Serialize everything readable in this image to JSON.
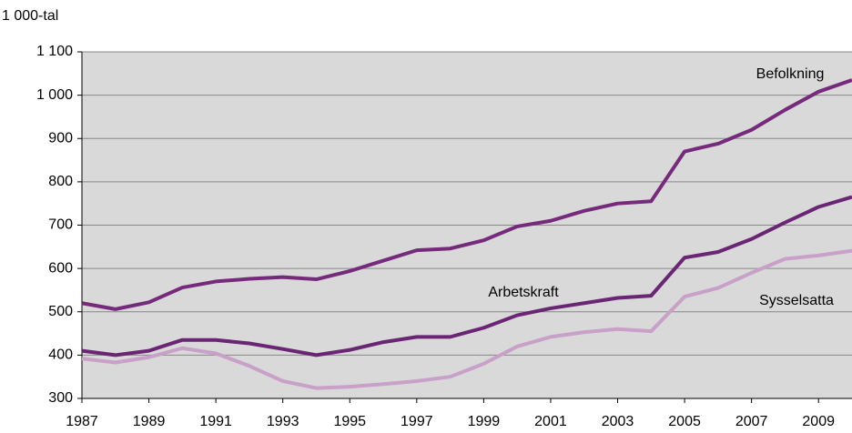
{
  "chart_data": {
    "type": "line",
    "y_label": "1 000-tal",
    "x": [
      1987,
      1988,
      1989,
      1990,
      1991,
      1992,
      1993,
      1994,
      1995,
      1996,
      1997,
      1998,
      1999,
      2000,
      2001,
      2002,
      2003,
      2004,
      2005,
      2006,
      2007,
      2008,
      2009,
      2010
    ],
    "series": [
      {
        "name": "Befolkning",
        "color": "#762a7b",
        "values": [
          520,
          506,
          522,
          556,
          570,
          576,
          580,
          575,
          594,
          618,
          642,
          646,
          665,
          697,
          710,
          733,
          750,
          755,
          870,
          888,
          920,
          966,
          1008,
          1035
        ]
      },
      {
        "name": "Arbetskraft",
        "color": "#6a2574",
        "values": [
          410,
          400,
          410,
          435,
          435,
          427,
          414,
          400,
          412,
          430,
          442,
          442,
          463,
          492,
          508,
          520,
          532,
          537,
          625,
          638,
          668,
          706,
          742,
          765
        ]
      },
      {
        "name": "Sysselsatta",
        "color": "#c8a0c8",
        "values": [
          392,
          383,
          395,
          416,
          404,
          375,
          340,
          324,
          327,
          333,
          340,
          350,
          380,
          420,
          442,
          453,
          460,
          455,
          535,
          555,
          590,
          622,
          630,
          641
        ]
      }
    ],
    "xlim": [
      1987,
      2010
    ],
    "xticks": [
      1987,
      1989,
      1991,
      1993,
      1995,
      1997,
      1999,
      2001,
      2003,
      2005,
      2007,
      2009
    ],
    "ylim": [
      300,
      1100
    ],
    "yticks": [
      300,
      400,
      500,
      600,
      700,
      800,
      900,
      {
        "value": 1000,
        "label": "1 000"
      },
      {
        "value": 1100,
        "label": "1 100"
      }
    ],
    "grid": true
  }
}
